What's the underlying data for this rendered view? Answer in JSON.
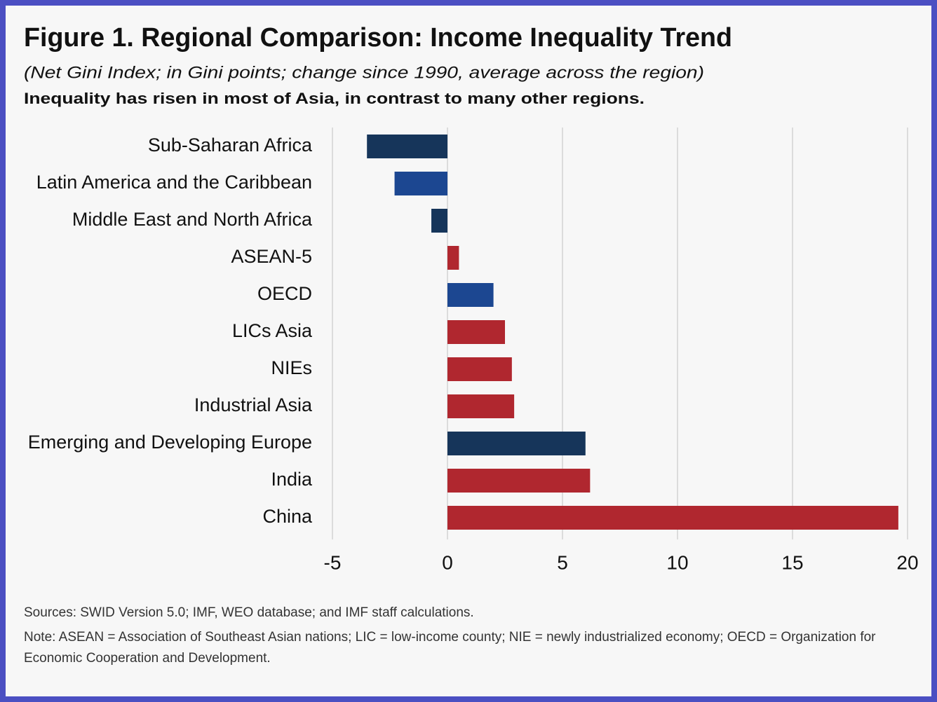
{
  "chart_data": {
    "type": "barh",
    "title": "Figure 1. Regional Comparison: Income Inequality Trend",
    "subtitle": "(Net Gini Index; in Gini points; change since 1990, average across the region)",
    "headline": "Inequality has risen in most of Asia, in contrast to many other regions.",
    "categories": [
      "Sub-Saharan Africa",
      "Latin America and the Caribbean",
      "Middle East and North Africa",
      "ASEAN-5",
      "OECD",
      "LICs Asia",
      "NIEs",
      "Industrial Asia",
      "Emerging and Developing Europe",
      "India",
      "China"
    ],
    "values": [
      -3.5,
      -2.3,
      -0.7,
      0.5,
      2.0,
      2.5,
      2.8,
      2.9,
      6.0,
      6.2,
      19.6
    ],
    "colors": [
      "#16355a",
      "#1c4791",
      "#16355a",
      "#b0272f",
      "#1c4791",
      "#b0272f",
      "#b0272f",
      "#b0272f",
      "#16355a",
      "#b0272f",
      "#b0272f"
    ],
    "xlim": [
      -5,
      20
    ],
    "xticks": [
      -5,
      0,
      5,
      10,
      15,
      20
    ],
    "grid": true,
    "sources": "Sources: SWID Version 5.0; IMF, WEO database; and IMF staff calculations.",
    "note": "Note: ASEAN = Association of Southeast Asian nations; LIC = low-income county; NIE = newly industrialized economy; OECD = Organization for Economic Cooperation and Development."
  }
}
